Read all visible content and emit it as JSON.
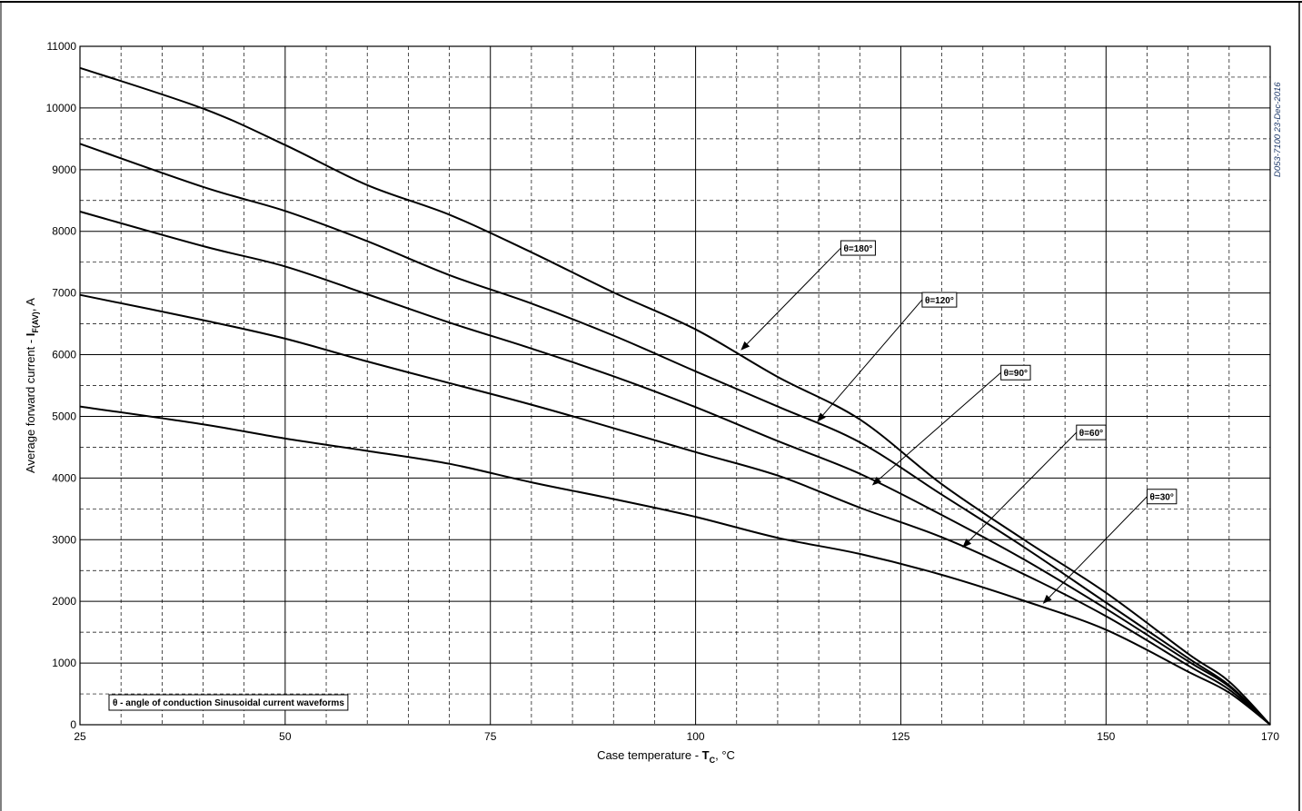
{
  "chart_data": {
    "type": "line",
    "title": "",
    "xlabel_main": "Case temperature - ",
    "xlabel_sym": "T",
    "xlabel_sub": "C",
    "xlabel_unit": ", °C",
    "ylabel_main": "Average forward current - ",
    "ylabel_sym": "I",
    "ylabel_sub": "F(AV)",
    "ylabel_unit": ", A",
    "xlim": [
      25,
      170
    ],
    "ylim": [
      0,
      11000
    ],
    "x_ticks": [
      25,
      50,
      75,
      100,
      125,
      150,
      170
    ],
    "y_ticks": [
      0,
      1000,
      2000,
      3000,
      4000,
      5000,
      6000,
      7000,
      8000,
      9000,
      10000,
      11000
    ],
    "grid": true,
    "series": [
      {
        "name": "θ=180°",
        "points": [
          [
            25,
            10650
          ],
          [
            40,
            9990
          ],
          [
            50,
            9400
          ],
          [
            60,
            8750
          ],
          [
            70,
            8270
          ],
          [
            80,
            7660
          ],
          [
            90,
            7010
          ],
          [
            100,
            6410
          ],
          [
            110,
            5640
          ],
          [
            120,
            4950
          ],
          [
            130,
            3900
          ],
          [
            140,
            3000
          ],
          [
            150,
            2140
          ],
          [
            160,
            1150
          ],
          [
            165,
            700
          ],
          [
            170,
            0
          ]
        ]
      },
      {
        "name": "θ=120°",
        "points": [
          [
            25,
            9420
          ],
          [
            40,
            8720
          ],
          [
            50,
            8330
          ],
          [
            60,
            7840
          ],
          [
            70,
            7290
          ],
          [
            80,
            6830
          ],
          [
            90,
            6310
          ],
          [
            100,
            5730
          ],
          [
            110,
            5160
          ],
          [
            120,
            4580
          ],
          [
            130,
            3730
          ],
          [
            140,
            2880
          ],
          [
            150,
            1980
          ],
          [
            160,
            1080
          ],
          [
            165,
            640
          ],
          [
            170,
            0
          ]
        ]
      },
      {
        "name": "θ=90°",
        "points": [
          [
            25,
            8320
          ],
          [
            40,
            7760
          ],
          [
            50,
            7430
          ],
          [
            60,
            6980
          ],
          [
            70,
            6520
          ],
          [
            80,
            6100
          ],
          [
            90,
            5650
          ],
          [
            100,
            5150
          ],
          [
            110,
            4600
          ],
          [
            120,
            4070
          ],
          [
            130,
            3400
          ],
          [
            140,
            2680
          ],
          [
            150,
            1880
          ],
          [
            160,
            1030
          ],
          [
            165,
            620
          ],
          [
            170,
            0
          ]
        ]
      },
      {
        "name": "θ=60°",
        "points": [
          [
            25,
            6970
          ],
          [
            40,
            6560
          ],
          [
            50,
            6260
          ],
          [
            60,
            5890
          ],
          [
            70,
            5540
          ],
          [
            80,
            5190
          ],
          [
            90,
            4810
          ],
          [
            100,
            4420
          ],
          [
            110,
            4040
          ],
          [
            120,
            3520
          ],
          [
            130,
            3040
          ],
          [
            140,
            2440
          ],
          [
            150,
            1760
          ],
          [
            160,
            960
          ],
          [
            165,
            570
          ],
          [
            170,
            0
          ]
        ]
      },
      {
        "name": "θ=30°",
        "points": [
          [
            25,
            5160
          ],
          [
            40,
            4870
          ],
          [
            50,
            4640
          ],
          [
            60,
            4440
          ],
          [
            70,
            4230
          ],
          [
            80,
            3930
          ],
          [
            90,
            3660
          ],
          [
            100,
            3370
          ],
          [
            110,
            3030
          ],
          [
            120,
            2770
          ],
          [
            130,
            2430
          ],
          [
            140,
            2010
          ],
          [
            150,
            1540
          ],
          [
            160,
            860
          ],
          [
            165,
            520
          ],
          [
            170,
            0
          ]
        ]
      }
    ],
    "annotations": [
      {
        "label": "θ=180°",
        "target": [
          105.5,
          6070
        ],
        "box": [
          117.7,
          7730
        ]
      },
      {
        "label": "θ=120°",
        "target": [
          114.8,
          4910
        ],
        "box": [
          127.6,
          6890
        ]
      },
      {
        "label": "θ=90°",
        "target": [
          121.5,
          3880
        ],
        "box": [
          137.2,
          5710
        ]
      },
      {
        "label": "θ=60°",
        "target": [
          132.5,
          2870
        ],
        "box": [
          146.4,
          4740
        ]
      },
      {
        "label": "θ=30°",
        "target": [
          142.3,
          1960
        ],
        "box": [
          155.0,
          3700
        ]
      }
    ],
    "note": "θ - angle of conduction Sinusoidal current waveforms",
    "side_text": "D053-7100 23-Dec-2016"
  }
}
